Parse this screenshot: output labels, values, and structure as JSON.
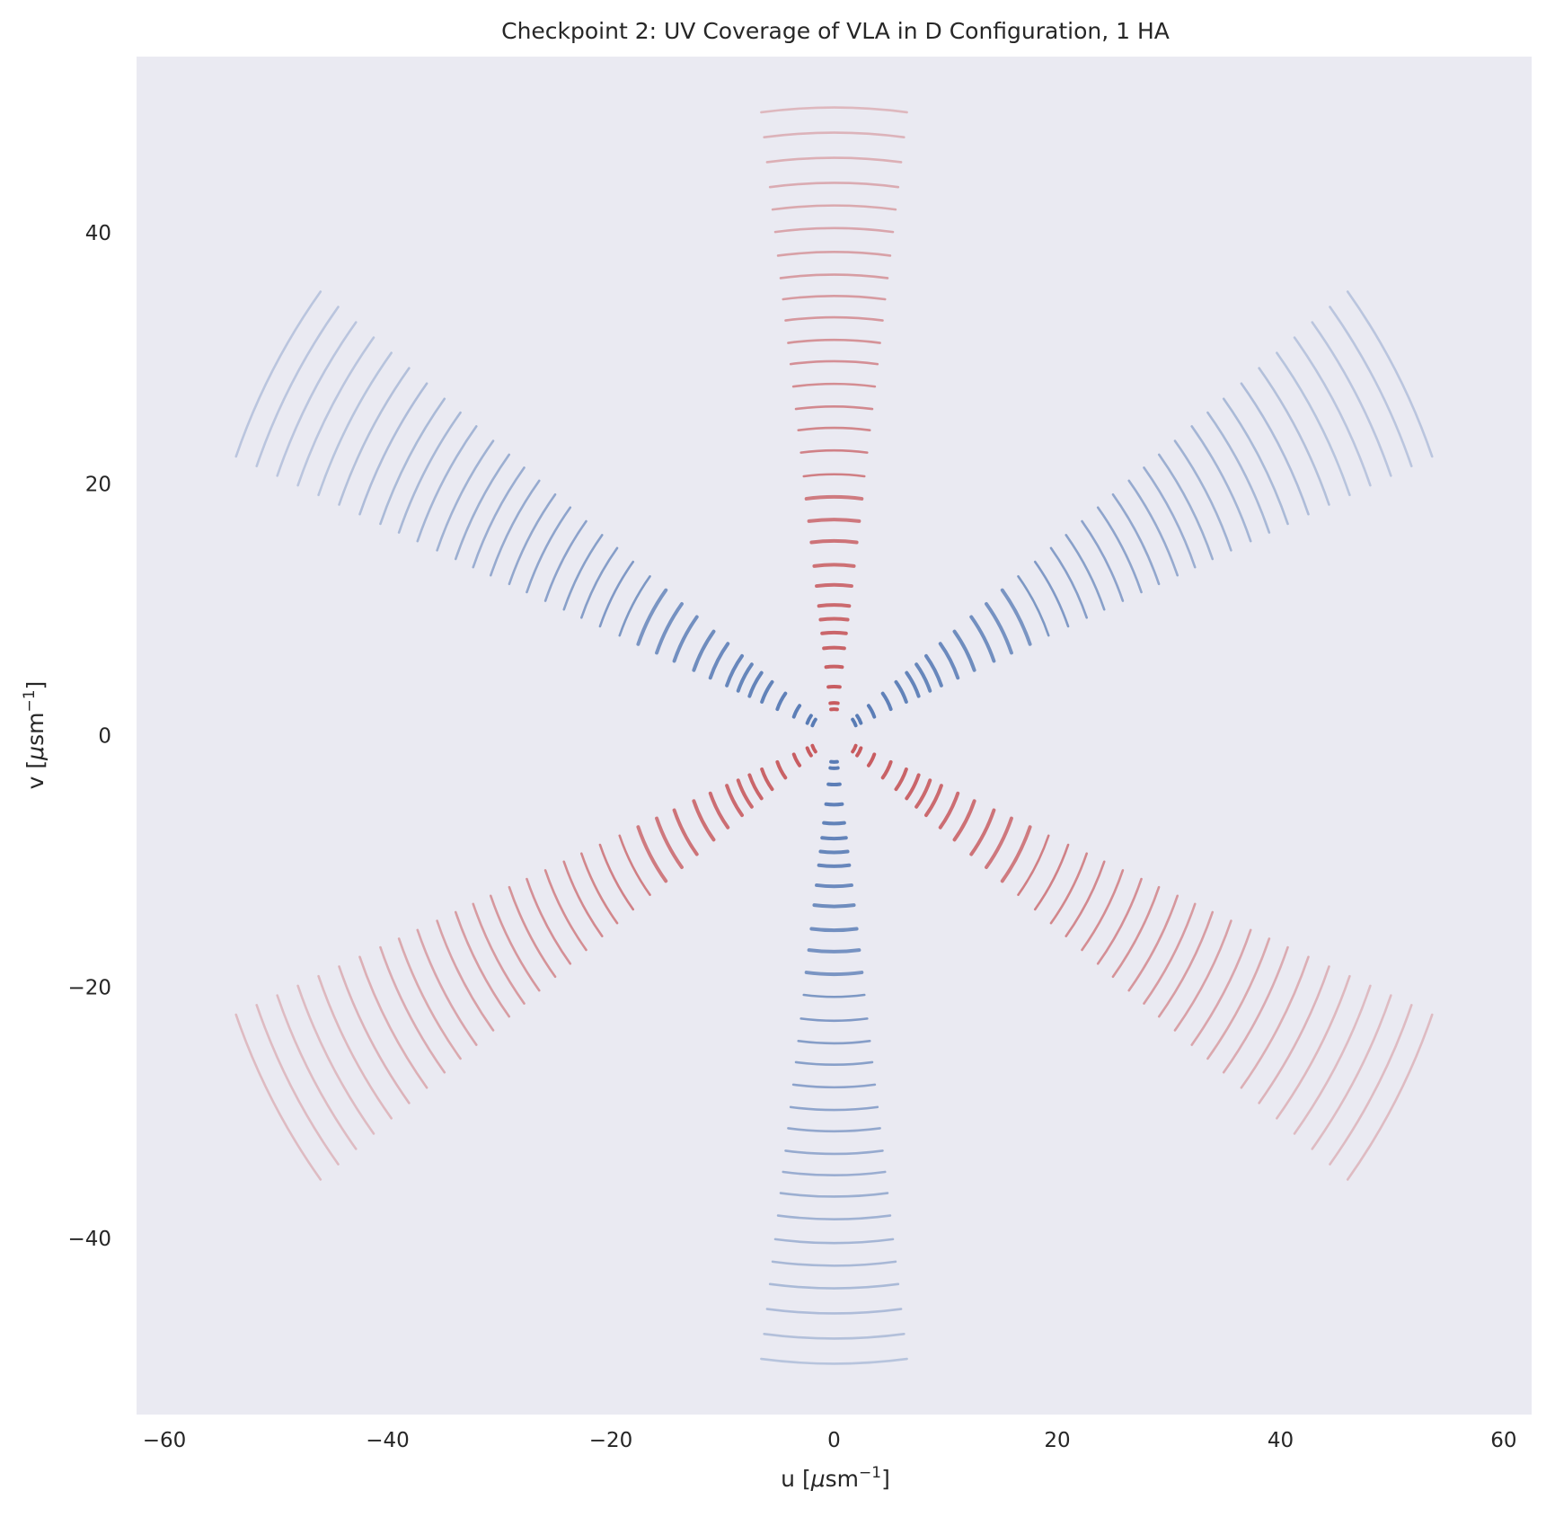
{
  "chart_data": {
    "type": "scatter",
    "title": "Checkpoint 2: UV Coverage of VLA in D Configuration, 1 HA",
    "xlabel": {
      "main": "u [",
      "mu": "μ",
      "unit": "sm",
      "sup": "−1",
      "close": "]"
    },
    "ylabel": {
      "main": "v [",
      "mu": "μ",
      "unit": "sm",
      "sup": "−1",
      "close": "]"
    },
    "xlim": [
      -62.5,
      62.5
    ],
    "ylim": [
      -54,
      54
    ],
    "xticks": [
      -60,
      -40,
      -20,
      0,
      20,
      40,
      60
    ],
    "yticks": [
      -40,
      -20,
      0,
      20,
      40
    ],
    "xtick_labels": [
      "−60",
      "−40",
      "−20",
      "0",
      "20",
      "40",
      "60"
    ],
    "ytick_labels": [
      "−40",
      "−20",
      "0",
      "20",
      "40"
    ],
    "grid": false,
    "background": "#eaeaf2",
    "series": [
      {
        "color": "#c44e52",
        "arm_angles_deg": [
          90,
          -30,
          210
        ]
      },
      {
        "color": "#4c72b0",
        "arm_angles_deg": [
          270,
          150,
          30
        ]
      }
    ],
    "arm_station_distances": [
      2.1,
      2.6,
      3.9,
      5.5,
      7.0,
      8.2,
      9.3,
      10.4,
      12.0,
      13.6,
      15.5,
      17.2,
      19.0,
      20.8,
      22.7,
      24.5,
      26.2,
      28.0,
      29.8,
      31.5,
      33.3,
      35.0,
      36.7,
      38.5,
      40.4,
      42.2,
      44.0,
      46.0,
      48.0,
      50.0,
      52.0,
      54.0,
      56.0,
      58.0
    ],
    "hour_angle_span_deg": 15
  }
}
